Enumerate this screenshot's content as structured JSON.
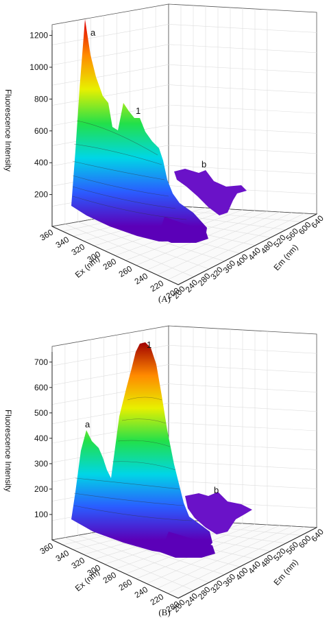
{
  "chart_data": [
    {
      "type": "surface3d",
      "caption": "(A)",
      "zlabel": "Fluorescence Intensity",
      "xlabel": "Ex (nm)",
      "ylabel": "Em (nm)",
      "z_ticks": [
        "200",
        "400",
        "600",
        "800",
        "1000",
        "1200"
      ],
      "ex_ticks": [
        "360",
        "340",
        "320",
        "300",
        "280",
        "260",
        "240",
        "220",
        "200"
      ],
      "em_ticks": [
        "200",
        "240",
        "280",
        "320",
        "360",
        "400",
        "440",
        "480",
        "520",
        "560",
        "600",
        "640"
      ],
      "zlim": [
        0,
        1250
      ],
      "peaks": [
        {
          "label": "a",
          "intensity": 1230
        },
        {
          "label": "1",
          "intensity": 740
        },
        {
          "label": "b",
          "intensity": 330
        }
      ],
      "colormap": [
        "#5b00b8",
        "#2a5cff",
        "#00d6e6",
        "#22e04a",
        "#e8f000",
        "#ff8a00",
        "#e00000"
      ]
    },
    {
      "type": "surface3d",
      "caption": "(B)",
      "zlabel": "Fluorescence Intensity",
      "xlabel": "Ex (nm)",
      "ylabel": "Em (nm)",
      "z_ticks": [
        "100",
        "200",
        "300",
        "400",
        "500",
        "600",
        "700"
      ],
      "ex_ticks": [
        "360",
        "340",
        "320",
        "300",
        "280",
        "260",
        "240",
        "220",
        "280"
      ],
      "em_ticks": [
        "200",
        "240",
        "280",
        "320",
        "360",
        "400",
        "440",
        "480",
        "520",
        "560",
        "600",
        "640"
      ],
      "zlim": [
        0,
        740
      ],
      "peaks": [
        {
          "label": "a",
          "intensity": 420
        },
        {
          "label": "1",
          "intensity": 725
        },
        {
          "label": "b",
          "intensity": 185
        }
      ],
      "colormap": [
        "#5b00b8",
        "#2a5cff",
        "#00d6e6",
        "#22e04a",
        "#e8f000",
        "#ff8a00",
        "#a00000"
      ]
    }
  ]
}
